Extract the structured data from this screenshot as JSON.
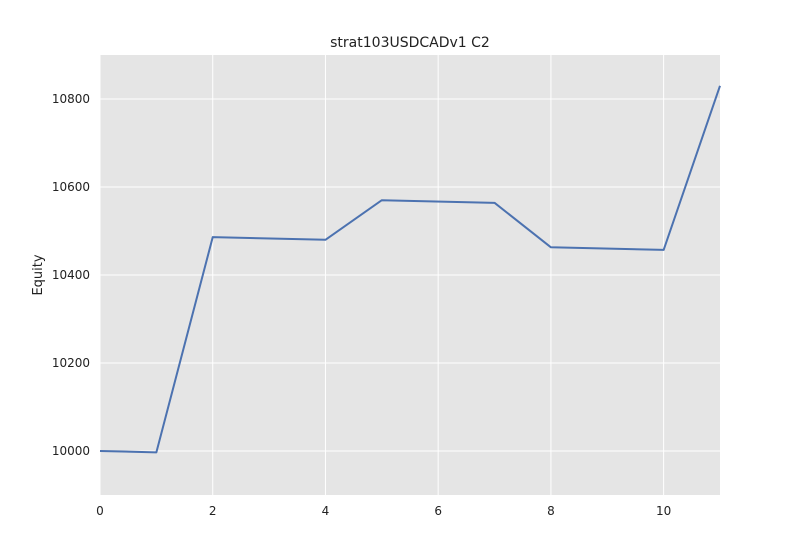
{
  "chart_data": {
    "type": "line",
    "title": "strat103USDCADv1 C2",
    "xlabel": "",
    "ylabel": "Equity",
    "xlim": [
      0,
      11
    ],
    "ylim": [
      9900,
      10900
    ],
    "x_ticks": [
      0,
      2,
      4,
      6,
      8,
      10
    ],
    "y_ticks": [
      10000,
      10200,
      10400,
      10600,
      10800
    ],
    "grid": true,
    "colors": {
      "line": "#4c72b0",
      "plot_background": "#e5e5e5",
      "grid": "#ffffff"
    },
    "series": [
      {
        "x": [
          0,
          1,
          2,
          4,
          5,
          7,
          8,
          10,
          11
        ],
        "y": [
          10000,
          9997,
          10486,
          10480,
          10570,
          10564,
          10463,
          10457,
          10830
        ]
      }
    ]
  }
}
